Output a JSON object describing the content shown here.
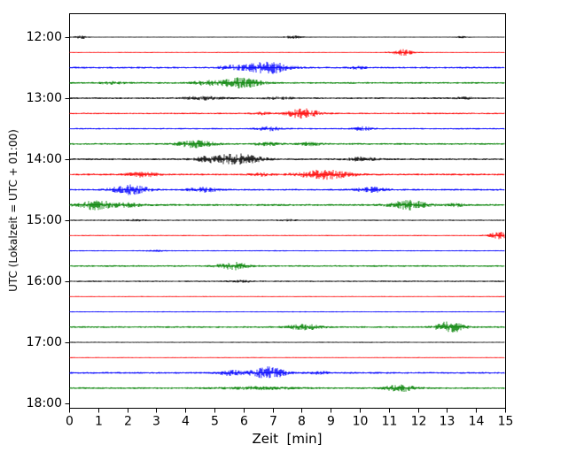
{
  "figure": {
    "background": "#ffffff",
    "axis_color": "#000000"
  },
  "chart_data": {
    "type": "line",
    "subtype": "helicorder-dayplot",
    "title": "",
    "xlabel": "Zeit  [min]",
    "ylabel": "UTC (Lokalzeit = UTC + 01:00)",
    "xlim": [
      0,
      15
    ],
    "x_ticks": [
      0,
      1,
      2,
      3,
      4,
      5,
      6,
      7,
      8,
      9,
      10,
      11,
      12,
      13,
      14,
      15
    ],
    "minutes_per_row": 15,
    "color_cycle": [
      "#000000",
      "#ff0000",
      "#0000ff",
      "#008000"
    ],
    "hour_labels": [
      {
        "label": "12:00",
        "row": 0
      },
      {
        "label": "13:00",
        "row": 4
      },
      {
        "label": "14:00",
        "row": 8
      },
      {
        "label": "15:00",
        "row": 12
      },
      {
        "label": "16:00",
        "row": 16
      },
      {
        "label": "17:00",
        "row": 20
      },
      {
        "label": "18:00",
        "row": 24
      }
    ],
    "rows": [
      {
        "start": "12:00",
        "color": "#000000",
        "noise": 0.35,
        "bursts": [
          [
            0.4,
            0.2,
            1.8
          ],
          [
            7.7,
            0.3,
            1.5
          ],
          [
            13.5,
            0.2,
            0.8
          ]
        ]
      },
      {
        "start": "12:15",
        "color": "#ff0000",
        "noise": 0.4,
        "bursts": [
          [
            11.5,
            0.35,
            3.5
          ]
        ]
      },
      {
        "start": "12:30",
        "color": "#0000ff",
        "noise": 0.9,
        "bursts": [
          [
            6.8,
            0.75,
            6.5
          ],
          [
            5.5,
            0.4,
            2.0
          ],
          [
            9.9,
            0.3,
            1.2
          ]
        ]
      },
      {
        "start": "12:45",
        "color": "#008000",
        "noise": 0.9,
        "bursts": [
          [
            5.9,
            0.65,
            5.5
          ],
          [
            4.7,
            0.5,
            2.2
          ],
          [
            1.5,
            0.4,
            1.2
          ]
        ]
      },
      {
        "start": "13:00",
        "color": "#000000",
        "noise": 0.8,
        "bursts": [
          [
            4.6,
            0.7,
            1.8
          ],
          [
            7.2,
            0.5,
            1.2
          ],
          [
            13.6,
            0.3,
            1.0
          ]
        ]
      },
      {
        "start": "13:15",
        "color": "#ff0000",
        "noise": 0.7,
        "bursts": [
          [
            8.05,
            0.55,
            5.5
          ],
          [
            6.6,
            0.3,
            1.4
          ]
        ]
      },
      {
        "start": "13:30",
        "color": "#0000ff",
        "noise": 0.7,
        "bursts": [
          [
            6.9,
            0.4,
            2.2
          ],
          [
            10.1,
            0.35,
            2.0
          ]
        ]
      },
      {
        "start": "13:45",
        "color": "#008000",
        "noise": 0.9,
        "bursts": [
          [
            4.35,
            0.6,
            3.8
          ],
          [
            6.8,
            0.4,
            1.8
          ],
          [
            8.3,
            0.4,
            1.6
          ]
        ]
      },
      {
        "start": "14:00",
        "color": "#000000",
        "noise": 0.9,
        "bursts": [
          [
            5.75,
            0.8,
            6.0
          ],
          [
            4.7,
            0.4,
            2.0
          ],
          [
            10.1,
            0.45,
            2.2
          ]
        ]
      },
      {
        "start": "14:15",
        "color": "#ff0000",
        "noise": 0.9,
        "bursts": [
          [
            2.5,
            0.5,
            2.8
          ],
          [
            8.8,
            0.85,
            5.0
          ],
          [
            6.6,
            0.4,
            1.6
          ]
        ]
      },
      {
        "start": "14:30",
        "color": "#0000ff",
        "noise": 0.9,
        "bursts": [
          [
            2.1,
            0.6,
            5.0
          ],
          [
            4.6,
            0.5,
            2.4
          ],
          [
            10.4,
            0.5,
            2.8
          ]
        ]
      },
      {
        "start": "14:45",
        "color": "#008000",
        "noise": 1.0,
        "bursts": [
          [
            0.95,
            0.6,
            5.0
          ],
          [
            2.1,
            0.4,
            2.0
          ],
          [
            11.7,
            0.6,
            5.0
          ],
          [
            13.3,
            0.3,
            1.4
          ]
        ]
      },
      {
        "start": "15:00",
        "color": "#000000",
        "noise": 0.55,
        "bursts": [
          [
            2.3,
            0.3,
            1.0
          ],
          [
            7.5,
            0.3,
            0.8
          ]
        ]
      },
      {
        "start": "15:15",
        "color": "#ff0000",
        "noise": 0.5,
        "bursts": [
          [
            14.8,
            0.35,
            3.8
          ]
        ]
      },
      {
        "start": "15:30",
        "color": "#0000ff",
        "noise": 0.5,
        "bursts": [
          [
            3.0,
            0.3,
            0.8
          ]
        ]
      },
      {
        "start": "15:45",
        "color": "#008000",
        "noise": 0.8,
        "bursts": [
          [
            5.65,
            0.5,
            4.0
          ]
        ]
      },
      {
        "start": "16:00",
        "color": "#000000",
        "noise": 0.65,
        "bursts": [
          [
            6.0,
            0.5,
            1.0
          ]
        ]
      },
      {
        "start": "16:15",
        "color": "#ff0000",
        "noise": 0.4,
        "bursts": []
      },
      {
        "start": "16:30",
        "color": "#0000ff",
        "noise": 0.45,
        "bursts": []
      },
      {
        "start": "16:45",
        "color": "#008000",
        "noise": 0.85,
        "bursts": [
          [
            8.1,
            0.55,
            3.0
          ],
          [
            13.1,
            0.45,
            6.5
          ]
        ]
      },
      {
        "start": "17:00",
        "color": "#000000",
        "noise": 0.45,
        "bursts": []
      },
      {
        "start": "17:15",
        "color": "#ff0000",
        "noise": 0.4,
        "bursts": []
      },
      {
        "start": "17:30",
        "color": "#0000ff",
        "noise": 0.9,
        "bursts": [
          [
            6.85,
            0.55,
            6.5
          ],
          [
            5.6,
            0.45,
            2.8
          ],
          [
            8.6,
            0.3,
            1.4
          ]
        ]
      },
      {
        "start": "17:45",
        "color": "#008000",
        "noise": 0.85,
        "bursts": [
          [
            11.4,
            0.5,
            3.8
          ],
          [
            6.5,
            1.2,
            1.3
          ]
        ]
      }
    ]
  }
}
